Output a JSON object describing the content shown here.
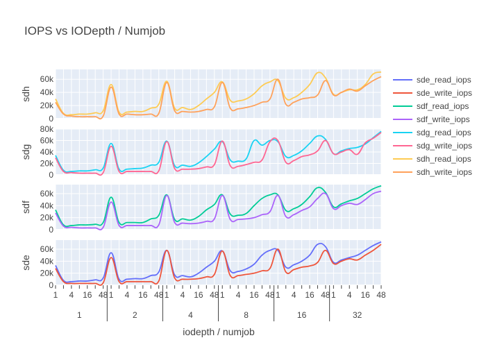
{
  "chart_data": {
    "type": "line",
    "title": "IOPS vs IODepth / Numjob",
    "xlabel": "iodepth / numjob",
    "iodepth_ticks": [
      "1",
      "2",
      "4",
      "8",
      "16",
      "32",
      "48"
    ],
    "numjob_groups": [
      "1",
      "2",
      "4",
      "8",
      "16",
      "32"
    ],
    "x": [
      "1/1",
      "1/2",
      "1/4",
      "1/8",
      "1/16",
      "1/32",
      "1/48",
      "2/1",
      "2/2",
      "2/4",
      "2/8",
      "2/16",
      "2/32",
      "2/48",
      "4/1",
      "4/2",
      "4/4",
      "4/8",
      "4/16",
      "4/32",
      "4/48",
      "8/1",
      "8/2",
      "8/4",
      "8/8",
      "8/16",
      "8/32",
      "8/48",
      "16/1",
      "16/2",
      "16/4",
      "16/8",
      "16/16",
      "16/32",
      "16/48",
      "32/1",
      "32/2",
      "32/4",
      "32/8",
      "32/16",
      "32/32",
      "32/48"
    ],
    "legend_position": "right",
    "colors": [
      "#636efa",
      "#ef553b",
      "#00cc96",
      "#ab63fa",
      "#19d3f3",
      "#ff6692",
      "#fecb52",
      "#ffa15a"
    ],
    "panels": [
      {
        "name": "sdh",
        "ylim": [
          0,
          75000
        ],
        "yticks": [
          0,
          20000,
          40000,
          60000
        ],
        "ytick_labels": [
          "0",
          "20k",
          "40k",
          "60k"
        ],
        "series": [
          {
            "name": "sdh_read_iops",
            "color": "#fecb52",
            "values": [
              30000,
              8000,
              6000,
              7000,
              7000,
              9000,
              12000,
              52000,
              10000,
              10000,
              11000,
              11000,
              16000,
              22000,
              57000,
              16000,
              17000,
              14000,
              20000,
              30000,
              40000,
              56000,
              28000,
              27000,
              30000,
              38000,
              50000,
              56000,
              58000,
              31000,
              32000,
              40000,
              52000,
              70000,
              62000,
              37000,
              40000,
              44000,
              44000,
              52000,
              68000,
              71000
            ]
          },
          {
            "name": "sdh_write_iops",
            "color": "#ffa15a",
            "values": [
              25000,
              7000,
              4000,
              3000,
              3000,
              3000,
              4000,
              48000,
              7000,
              7000,
              6000,
              6000,
              7000,
              8000,
              55000,
              12000,
              11000,
              10000,
              11000,
              14000,
              18000,
              55000,
              16000,
              15000,
              17000,
              20000,
              25000,
              30000,
              60000,
              22000,
              25000,
              30000,
              32000,
              36000,
              58000,
              36000,
              40000,
              45000,
              42000,
              50000,
              58000,
              64000
            ]
          }
        ]
      },
      {
        "name": "sdg",
        "ylim": [
          0,
          80000
        ],
        "yticks": [
          0,
          20000,
          40000,
          60000,
          80000
        ],
        "ytick_labels": [
          "0",
          "20k",
          "40k",
          "60k",
          "80k"
        ],
        "series": [
          {
            "name": "sdg_read_iops",
            "color": "#19d3f3",
            "values": [
              34000,
              8000,
              6000,
              7000,
              7000,
              9000,
              12000,
              55000,
              10000,
              10000,
              11000,
              12000,
              17000,
              22000,
              59000,
              16000,
              17000,
              15000,
              21000,
              32000,
              45000,
              58000,
              26000,
              24000,
              28000,
              60000,
              52000,
              60000,
              58000,
              32000,
              34000,
              42000,
              55000,
              68000,
              62000,
              37000,
              42000,
              46000,
              48000,
              54000,
              65000,
              76000
            ]
          },
          {
            "name": "sdg_write_iops",
            "color": "#ff6692",
            "values": [
              30000,
              6000,
              4000,
              3000,
              3000,
              3000,
              4000,
              50000,
              6000,
              6000,
              6000,
              6000,
              6000,
              7000,
              58000,
              11000,
              10000,
              10000,
              11000,
              14000,
              18000,
              59000,
              16000,
              15000,
              18000,
              22000,
              26000,
              58000,
              60000,
              22000,
              25000,
              32000,
              35000,
              42000,
              60000,
              37000,
              40000,
              44000,
              36000,
              56000,
              64000,
              74000
            ]
          }
        ]
      },
      {
        "name": "sdf",
        "ylim": [
          0,
          75000
        ],
        "yticks": [
          0,
          20000,
          40000,
          60000
        ],
        "ytick_labels": [
          "0",
          "20k",
          "40k",
          "60k"
        ],
        "series": [
          {
            "name": "sdf_read_iops",
            "color": "#00cc96",
            "values": [
              33000,
              8000,
              7000,
              8000,
              8000,
              9000,
              12000,
              54000,
              12000,
              12000,
              12000,
              12000,
              18000,
              24000,
              58000,
              17000,
              18000,
              16000,
              22000,
              33000,
              42000,
              58000,
              26000,
              24000,
              27000,
              40000,
              52000,
              58000,
              58000,
              32000,
              35000,
              42000,
              55000,
              70000,
              62000,
              38000,
              43000,
              48000,
              52000,
              60000,
              68000,
              73000
            ]
          },
          {
            "name": "sdf_write_iops",
            "color": "#ab63fa",
            "values": [
              28000,
              6000,
              4000,
              3000,
              3000,
              3000,
              4000,
              46000,
              7000,
              7000,
              7000,
              7000,
              7000,
              8000,
              57000,
              12000,
              11000,
              10000,
              11000,
              14000,
              18000,
              57000,
              17000,
              17000,
              18000,
              20000,
              25000,
              30000,
              57000,
              22000,
              25000,
              32000,
              38000,
              52000,
              60000,
              35000,
              40000,
              44000,
              42000,
              50000,
              60000,
              64000
            ]
          }
        ]
      },
      {
        "name": "sde",
        "ylim": [
          0,
          75000
        ],
        "yticks": [
          0,
          20000,
          40000,
          60000
        ],
        "ytick_labels": [
          "0",
          "20k",
          "40k",
          "60k"
        ],
        "series": [
          {
            "name": "sde_read_iops",
            "color": "#636efa",
            "values": [
              33000,
              8000,
              6000,
              7000,
              7000,
              9000,
              12000,
              54000,
              10000,
              10000,
              11000,
              11000,
              16000,
              22000,
              58000,
              17000,
              16000,
              14000,
              20000,
              30000,
              40000,
              57000,
              24000,
              23000,
              27000,
              35000,
              50000,
              58000,
              58000,
              30000,
              34000,
              40000,
              50000,
              68000,
              64000,
              38000,
              42000,
              46000,
              50000,
              58000,
              66000,
              72000
            ]
          },
          {
            "name": "sde_write_iops",
            "color": "#ef553b",
            "values": [
              28000,
              6000,
              3000,
              3000,
              3000,
              3000,
              4000,
              46000,
              6000,
              6000,
              6000,
              6000,
              6000,
              7000,
              58000,
              12000,
              10000,
              10000,
              11000,
              14000,
              18000,
              57000,
              16000,
              16000,
              18000,
              20000,
              24000,
              28000,
              60000,
              22000,
              26000,
              30000,
              32000,
              38000,
              58000,
              36000,
              40000,
              44000,
              42000,
              50000,
              58000,
              68000
            ]
          }
        ]
      }
    ],
    "legend": [
      "sde_read_iops",
      "sde_write_iops",
      "sdf_read_iops",
      "sdf_write_iops",
      "sdg_read_iops",
      "sdg_write_iops",
      "sdh_read_iops",
      "sdh_write_iops"
    ]
  }
}
